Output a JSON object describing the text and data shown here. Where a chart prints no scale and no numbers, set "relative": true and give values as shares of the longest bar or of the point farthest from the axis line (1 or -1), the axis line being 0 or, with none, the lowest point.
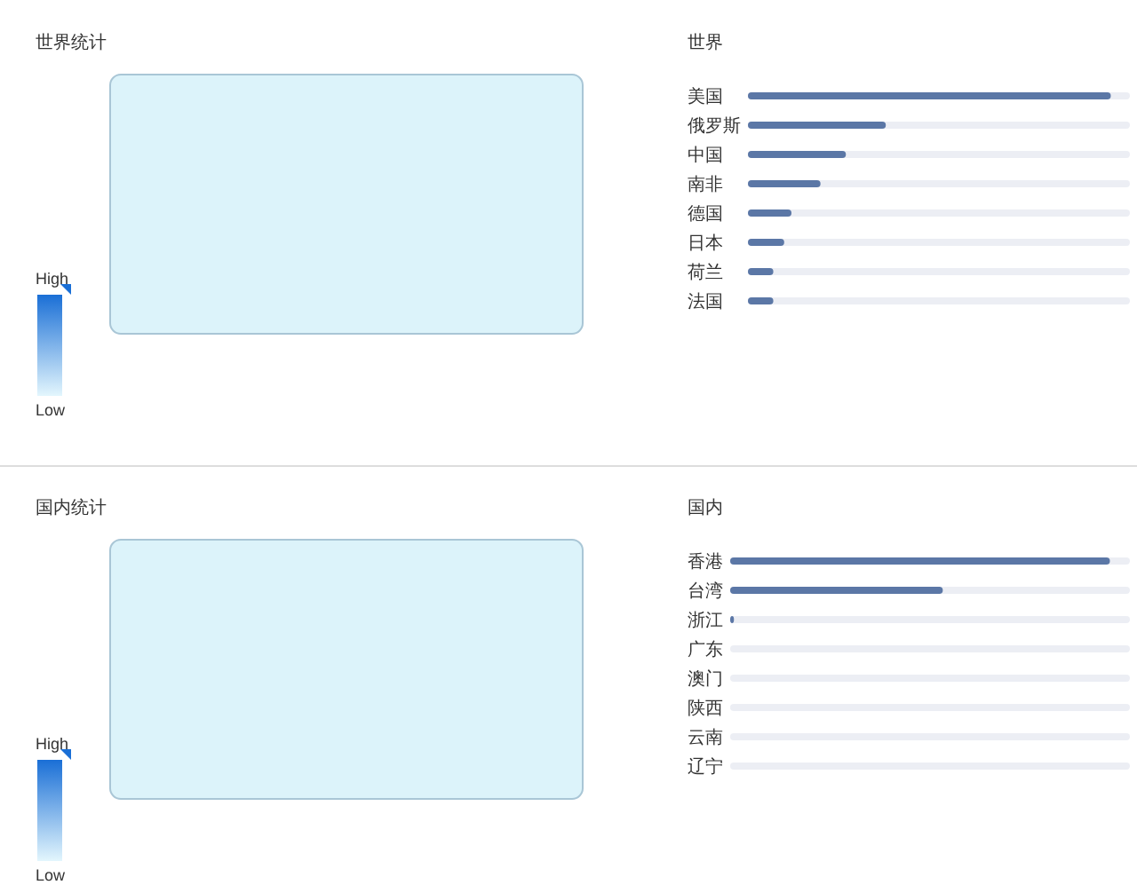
{
  "chart_data": [
    {
      "type": "other",
      "title": "世界统计",
      "annotations": [
        "High",
        "Low"
      ]
    },
    {
      "type": "bar",
      "title": "世界",
      "orientation": "horizontal",
      "relative": true,
      "categories": [
        "美国",
        "俄罗斯",
        "中国",
        "南非",
        "德国",
        "日本",
        "荷兰",
        "法国"
      ],
      "values": [
        1,
        0.38,
        0.27,
        0.2,
        0.12,
        0.1,
        0.07,
        0.07
      ],
      "color": "#5b77a6"
    },
    {
      "type": "other",
      "title": "国内统计",
      "annotations": [
        "High",
        "Low"
      ]
    },
    {
      "type": "bar",
      "title": "国内",
      "orientation": "horizontal",
      "relative": true,
      "categories": [
        "香港",
        "台湾",
        "浙江",
        "广东",
        "澳门",
        "陕西",
        "云南",
        "辽宁"
      ],
      "values": [
        1,
        0.56,
        0.01,
        0,
        0,
        0,
        0,
        0
      ],
      "color": "#5b77a6"
    }
  ]
}
